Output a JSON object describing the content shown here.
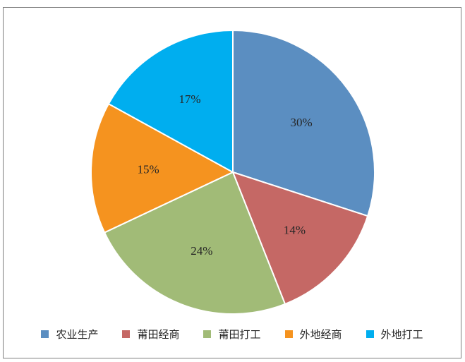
{
  "chart_data": {
    "type": "pie",
    "categories": [
      "农业生产",
      "莆田经商",
      "莆田打工",
      "外地经商",
      "外地打工"
    ],
    "values": [
      30,
      14,
      24,
      15,
      17
    ],
    "labels": [
      "30%",
      "14%",
      "24%",
      "15%",
      "17%"
    ],
    "colors": [
      "#5b8ec1",
      "#c56865",
      "#a1bb77",
      "#f5931f",
      "#00aeef"
    ],
    "start_angle_deg": 0,
    "direction": "clockwise",
    "title": "",
    "legend_position": "bottom"
  }
}
